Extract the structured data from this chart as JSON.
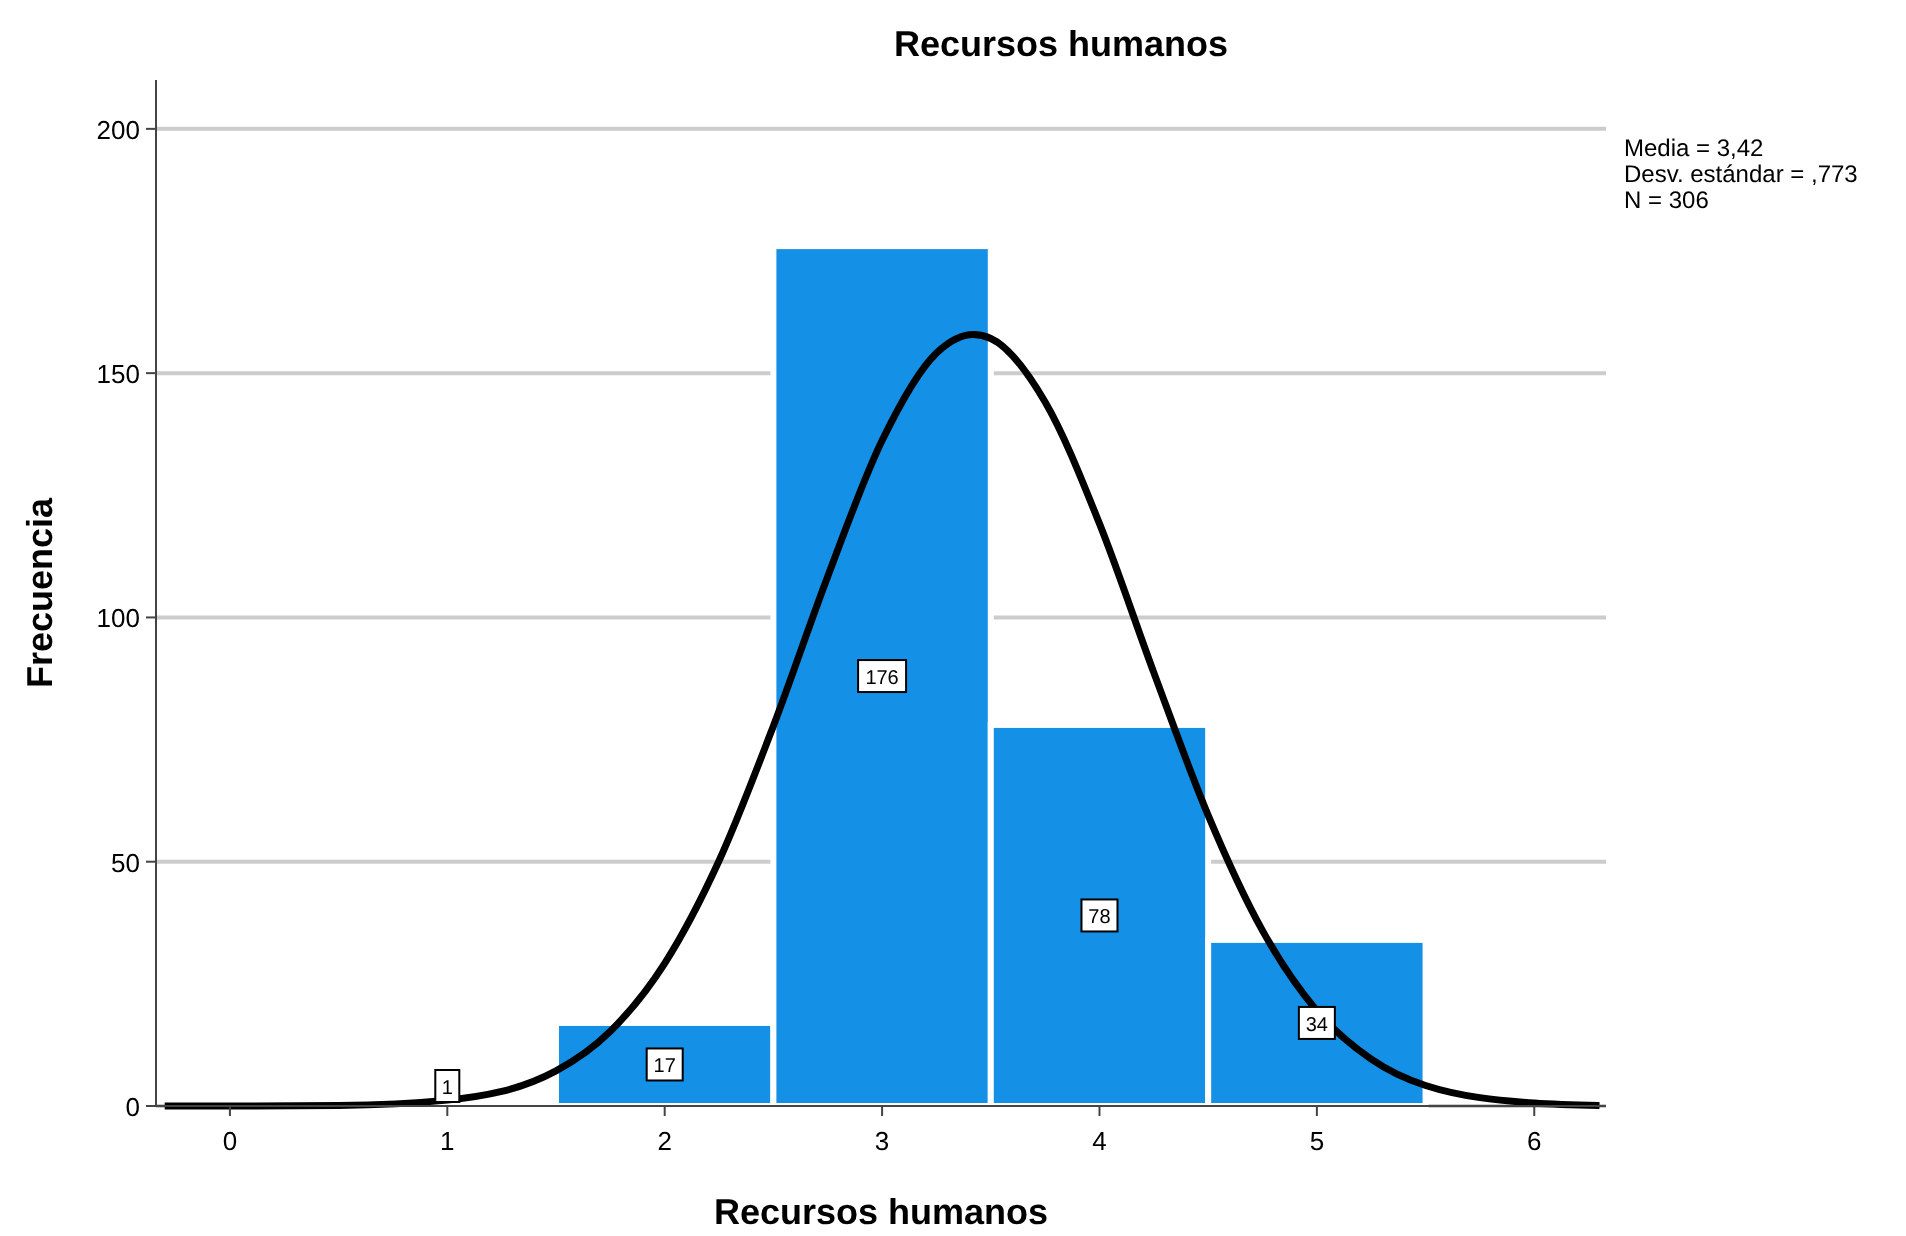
{
  "chart_data": {
    "type": "histogram",
    "title": "Recursos humanos",
    "xlabel": "Recursos humanos",
    "ylabel": "Frecuencia",
    "annotations": [
      "Media = 3,42",
      "Desv. estándar = ,773",
      "N = 306"
    ],
    "bins": [
      0.5,
      1.5,
      2.5,
      3.5,
      4.5,
      5.5
    ],
    "series": [
      {
        "color": "#1490e6",
        "values": [
          1,
          17,
          176,
          78,
          34
        ],
        "value_labels": [
          "1",
          "17",
          "176",
          "78",
          "34"
        ]
      },
      {
        "type": "line",
        "color": "#000000",
        "x": [
          -0.3,
          0,
          0.5,
          1,
          1.5,
          1.75,
          2,
          2.25,
          2.5,
          2.75,
          3,
          3.25,
          3.42,
          3.5,
          3.75,
          4,
          4.25,
          4.5,
          4.75,
          5,
          5.25,
          5.5,
          6,
          6.3
        ],
        "values": [
          0,
          0,
          0.1,
          1.2,
          7.2,
          15.3,
          29.2,
          50.2,
          77.8,
          108.4,
          136.2,
          154.1,
          157.9,
          157.1,
          144.1,
          119.2,
          88.7,
          59.5,
          35.9,
          19.5,
          9.6,
          4.2,
          0.6,
          0.1
        ]
      }
    ],
    "grid": "y",
    "marker": "none",
    "xlim": [
      -0.34,
      6.33
    ],
    "xticks": [
      0,
      1,
      2,
      3,
      4,
      5,
      6
    ],
    "ylim": [
      0,
      210
    ],
    "yticks": [
      0,
      50,
      100,
      150,
      200
    ]
  }
}
